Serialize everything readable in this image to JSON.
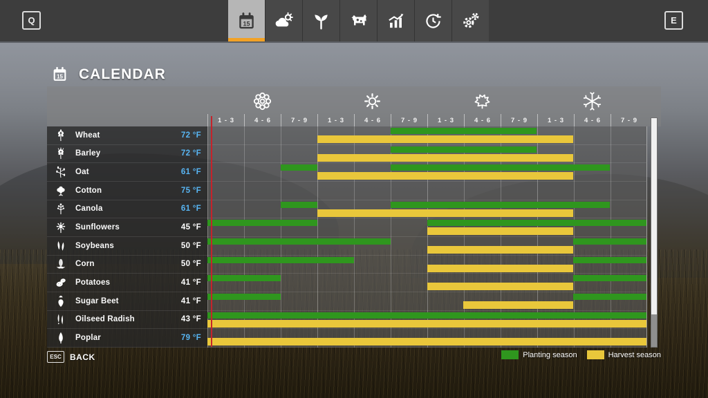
{
  "topbar": {
    "left_key": "Q",
    "right_key": "E",
    "calendar_day": "15",
    "tabs": [
      {
        "name": "calendar",
        "icon": "calendar-15-icon",
        "active": true
      },
      {
        "name": "weather",
        "icon": "weather-icon",
        "active": false
      },
      {
        "name": "crops",
        "icon": "crops-icon",
        "active": false
      },
      {
        "name": "animals",
        "icon": "animals-icon",
        "active": false
      },
      {
        "name": "statistics",
        "icon": "stats-icon",
        "active": false
      },
      {
        "name": "rotation",
        "icon": "rotation-icon",
        "active": false
      },
      {
        "name": "settings",
        "icon": "settings-icon",
        "active": false
      }
    ]
  },
  "page": {
    "title": "CALENDAR",
    "title_icon": "calendar-15-icon"
  },
  "calendar": {
    "seasons": [
      {
        "name": "spring",
        "icon": "flower-icon",
        "periods": [
          "1 - 3",
          "4 - 6",
          "7 - 9"
        ]
      },
      {
        "name": "summer",
        "icon": "sun-icon",
        "periods": [
          "1 - 3",
          "4 - 6",
          "7 - 9"
        ]
      },
      {
        "name": "autumn",
        "icon": "leaf-icon",
        "periods": [
          "1 - 3",
          "4 - 6",
          "7 - 9"
        ]
      },
      {
        "name": "winter",
        "icon": "snowflake-icon",
        "periods": [
          "1 - 3",
          "4 - 6",
          "7 - 9"
        ]
      }
    ],
    "periods_total": 12,
    "today_marker_period": 0.12,
    "rows": [
      {
        "crop": "Wheat",
        "icon": "wheat-icon",
        "temp": "72 °F",
        "temp_color": "blue",
        "planting": [
          [
            5,
            9
          ]
        ],
        "harvest": [
          [
            3,
            10
          ]
        ]
      },
      {
        "crop": "Barley",
        "icon": "barley-icon",
        "temp": "72 °F",
        "temp_color": "blue",
        "planting": [
          [
            5,
            9
          ]
        ],
        "harvest": [
          [
            3,
            10
          ]
        ]
      },
      {
        "crop": "Oat",
        "icon": "oat-icon",
        "temp": "61 °F",
        "temp_color": "blue",
        "planting": [
          [
            2,
            3
          ],
          [
            5,
            11
          ]
        ],
        "harvest": [
          [
            3,
            10
          ]
        ]
      },
      {
        "crop": "Cotton",
        "icon": "cotton-icon",
        "temp": "75 °F",
        "temp_color": "blue",
        "planting": [],
        "harvest": []
      },
      {
        "crop": "Canola",
        "icon": "canola-icon",
        "temp": "61 °F",
        "temp_color": "blue",
        "planting": [
          [
            2,
            3
          ],
          [
            5,
            11
          ]
        ],
        "harvest": [
          [
            3,
            10
          ]
        ]
      },
      {
        "crop": "Sunflowers",
        "icon": "sunflower-icon",
        "temp": "45 °F",
        "temp_color": "white",
        "planting": [
          [
            0,
            3
          ],
          [
            6,
            12
          ]
        ],
        "harvest": [
          [
            6,
            10
          ]
        ]
      },
      {
        "crop": "Soybeans",
        "icon": "soybean-icon",
        "temp": "50 °F",
        "temp_color": "white",
        "planting": [
          [
            0,
            5
          ],
          [
            10,
            12
          ]
        ],
        "harvest": [
          [
            6,
            10
          ]
        ]
      },
      {
        "crop": "Corn",
        "icon": "corn-icon",
        "temp": "50 °F",
        "temp_color": "white",
        "planting": [
          [
            0,
            4
          ],
          [
            10,
            12
          ]
        ],
        "harvest": [
          [
            6,
            10
          ]
        ]
      },
      {
        "crop": "Potatoes",
        "icon": "potato-icon",
        "temp": "41 °F",
        "temp_color": "white",
        "planting": [
          [
            0,
            2
          ],
          [
            10,
            12
          ]
        ],
        "harvest": [
          [
            6,
            10
          ]
        ]
      },
      {
        "crop": "Sugar Beet",
        "icon": "sugar-beet-icon",
        "temp": "41 °F",
        "temp_color": "white",
        "planting": [
          [
            0,
            2
          ],
          [
            10,
            12
          ]
        ],
        "harvest": [
          [
            7,
            10
          ]
        ]
      },
      {
        "crop": "Oilseed Radish",
        "icon": "oilseed-radish-icon",
        "temp": "43 °F",
        "temp_color": "white",
        "planting": [
          [
            0,
            12
          ]
        ],
        "harvest": [
          [
            0,
            12
          ]
        ]
      },
      {
        "crop": "Poplar",
        "icon": "poplar-icon",
        "temp": "79 °F",
        "temp_color": "blue",
        "planting": [],
        "harvest": [
          [
            0,
            12
          ]
        ]
      }
    ],
    "legend": [
      {
        "label": "Planting season",
        "color": "planting"
      },
      {
        "label": "Harvest season",
        "color": "harvest"
      }
    ]
  },
  "footer": {
    "key": "ESC",
    "label": "BACK"
  },
  "colors": {
    "planting": "#2f961e",
    "harvest": "#e9c73b",
    "today_line": "#c5232b",
    "accent_orange": "#f3a225",
    "temp_blue": "#58b6f4",
    "temp_white": "#ffffff"
  }
}
